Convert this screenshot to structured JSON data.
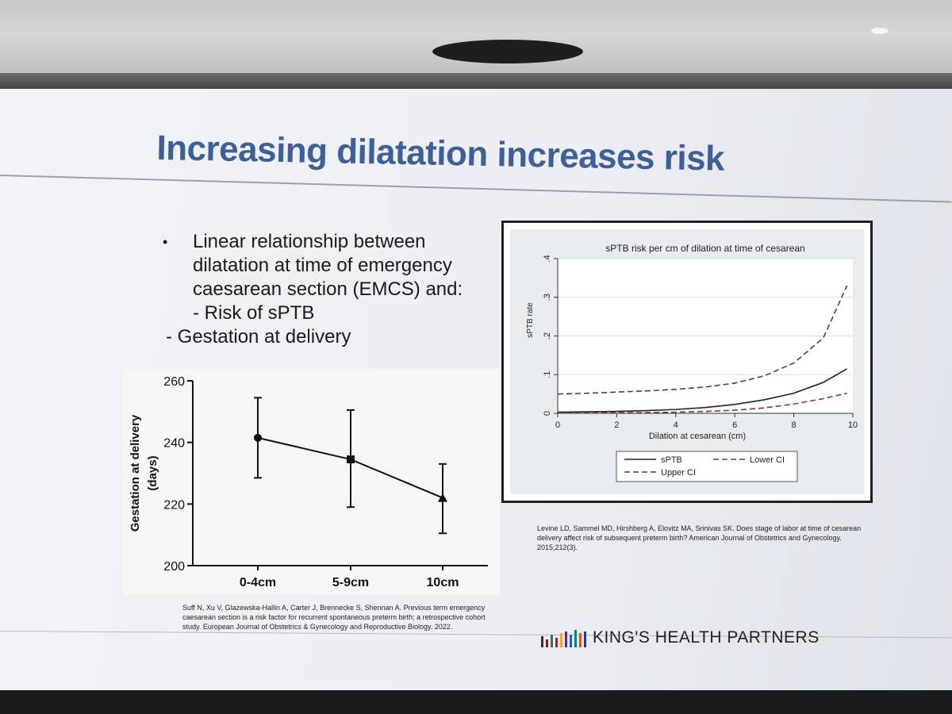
{
  "slide": {
    "title": "Increasing dilatation increases risk",
    "bullets": {
      "main_lines": [
        "Linear relationship between",
        "dilatation at time of emergency",
        "caesarean section (EMCS) and:"
      ],
      "sub_1": "- Risk of sPTB",
      "sub_2": "- Gestation at delivery"
    },
    "citation_left": "Suff N, Xu V, Glazewska-Hallin A, Carter J, Brennecke S, Shennan A. Previous term emergency caesarean section is a risk factor for recurrent spontaneous preterm birth; a retrospective cohort study. European Journal of Obstetrics & Gynecology and Reproductive Biology. 2022.",
    "citation_right": "Levine LD, Sammel MD, Hirshberg A, Elovitz MA, Srinivas SK. Does stage of labor at time of cesarean delivery affect risk of subsequent preterm birth? American Journal of Obstetrics and Gynecology. 2015;212(3).",
    "logo_text": "KING'S HEALTH PARTNERS",
    "logo_colors": [
      "#333333",
      "#7a1f2b",
      "#2e7d32",
      "#b71c1c",
      "#f9a825",
      "#6a1b9a",
      "#1565c0",
      "#00897b",
      "#e65100",
      "#283593"
    ],
    "title_color": "#3e5f97"
  },
  "chart_data": [
    {
      "type": "line",
      "title": "",
      "xlabel": "",
      "ylabel": "Gestation at delivery (days)",
      "ylabel_lines": [
        "Gestation at delivery",
        "(days)"
      ],
      "categories": [
        "0-4cm",
        "5-9cm",
        "10cm"
      ],
      "values": [
        241.5,
        234.5,
        222
      ],
      "error_low": [
        228.5,
        219,
        210.5
      ],
      "error_high": [
        254.5,
        250.5,
        233
      ],
      "markers": [
        "circle",
        "square",
        "triangle"
      ],
      "ylim": [
        200,
        260
      ],
      "yticks": [
        200,
        220,
        240,
        260
      ]
    },
    {
      "type": "line",
      "title": "sPTB risk per cm of dilation at time of cesarean",
      "xlabel": "Dilation at cesarean (cm)",
      "ylabel": "sPTB rate",
      "xlim": [
        0,
        10
      ],
      "ylim": [
        0,
        0.4
      ],
      "xticks": [
        0,
        2,
        4,
        6,
        8,
        10
      ],
      "yticks": [
        0,
        0.1,
        0.2,
        0.3,
        0.4
      ],
      "ytick_labels": [
        "0",
        ".1",
        ".2",
        ".3",
        ".4"
      ],
      "grid": true,
      "legend_position": "bottom",
      "series": [
        {
          "name": "sPTB",
          "style": "solid",
          "color": "#222222",
          "x": [
            0,
            1,
            2,
            3,
            4,
            5,
            6,
            7,
            8,
            9,
            9.8
          ],
          "y": [
            0.003,
            0.004,
            0.005,
            0.007,
            0.01,
            0.015,
            0.023,
            0.035,
            0.052,
            0.08,
            0.115
          ]
        },
        {
          "name": "Lower CI",
          "style": "dashed",
          "color": "#7a3a4a",
          "x": [
            0,
            1,
            2,
            3,
            4,
            5,
            6,
            7,
            8,
            9,
            9.8
          ],
          "y": [
            0.001,
            0.001,
            0.002,
            0.002,
            0.003,
            0.005,
            0.008,
            0.014,
            0.024,
            0.038,
            0.052
          ]
        },
        {
          "name": "Upper CI",
          "style": "dashed",
          "color": "#444444",
          "x": [
            0,
            1,
            2,
            3,
            4,
            5,
            6,
            7,
            8,
            9,
            9.8
          ],
          "y": [
            0.05,
            0.052,
            0.055,
            0.058,
            0.062,
            0.068,
            0.078,
            0.097,
            0.13,
            0.195,
            0.33
          ]
        }
      ]
    }
  ]
}
